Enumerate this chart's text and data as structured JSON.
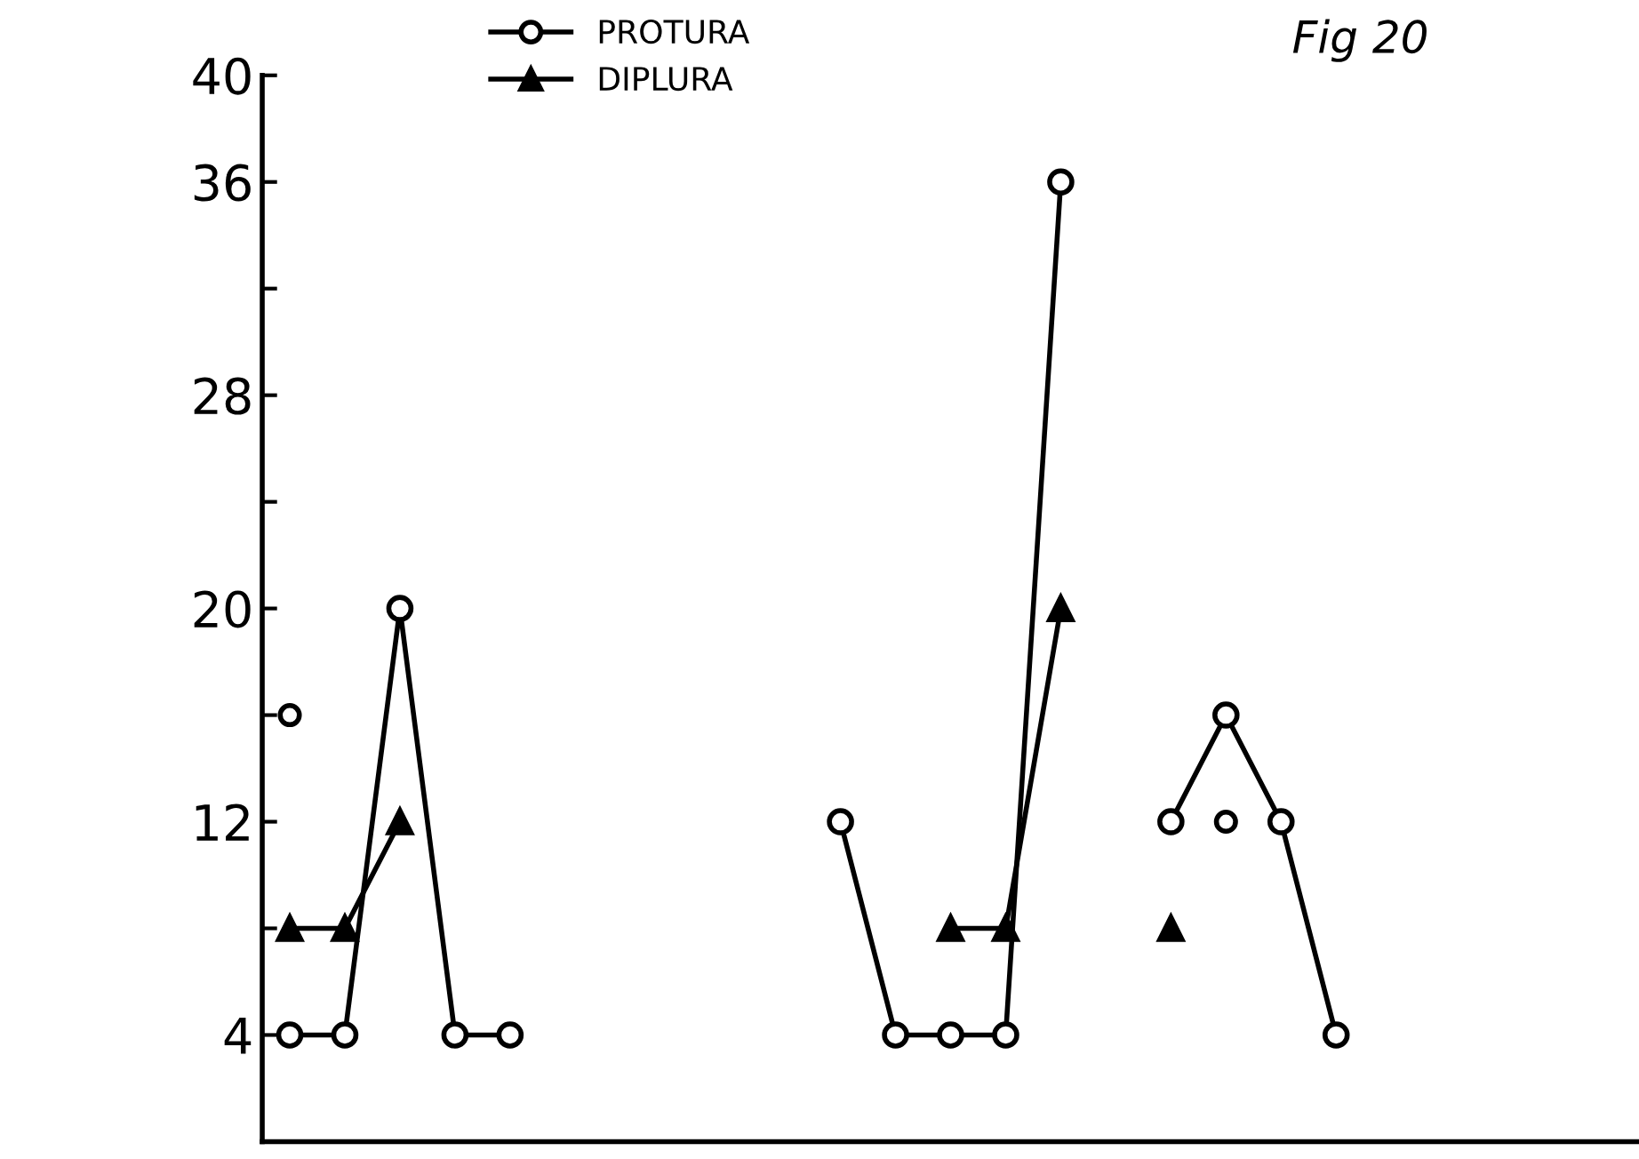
{
  "chart_data": {
    "type": "line",
    "annotations": [
      "Fig 20"
    ],
    "categories": [
      null,
      null,
      null,
      null,
      null,
      null,
      null,
      null,
      null,
      null,
      null,
      null,
      null,
      null,
      null,
      null,
      null,
      null,
      null,
      null,
      null,
      null,
      null,
      null,
      null
    ],
    "series": [
      {
        "name": "PROTURA",
        "color": "#000000",
        "marker": "circle",
        "values": [
          4,
          4,
          20,
          4,
          4,
          null,
          null,
          null,
          null,
          null,
          12,
          4,
          4,
          4,
          36,
          null,
          12,
          16,
          12,
          4,
          null,
          null,
          null,
          null,
          null
        ]
      },
      {
        "name": "DIPLURA",
        "color": "#000000",
        "marker": "triangle",
        "values": [
          8,
          8,
          12,
          null,
          null,
          null,
          null,
          null,
          null,
          null,
          null,
          null,
          8,
          8,
          20,
          null,
          8,
          null,
          null,
          null,
          null,
          null,
          null,
          null,
          null
        ]
      },
      {
        "type": "scatter",
        "color": "#000000",
        "marker": "circle",
        "values": [
          16,
          null,
          null,
          null,
          null,
          null,
          null,
          null,
          null,
          null,
          null,
          null,
          null,
          null,
          null,
          null,
          null,
          12,
          null,
          null,
          null,
          null,
          null,
          null,
          null
        ]
      }
    ],
    "ylim": [
      0,
      40
    ],
    "yticks": [
      {
        "value": 4,
        "label": "4"
      },
      {
        "value": 8,
        "label": null
      },
      12,
      {
        "value": 16,
        "label": null
      },
      20,
      {
        "value": 24,
        "label": null
      },
      28,
      {
        "value": 32,
        "label": null
      },
      36,
      40
    ],
    "tick_labels": "y",
    "legend": "top",
    "grid": false
  }
}
